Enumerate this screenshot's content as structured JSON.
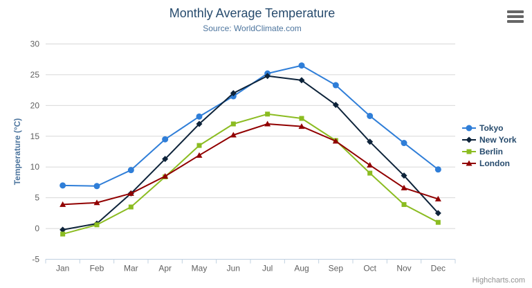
{
  "chart": {
    "credits": "Highcharts.com",
    "context_menu_icon": "hamburger-menu-icon"
  },
  "chart_data": {
    "type": "line",
    "title": "Monthly Average Temperature",
    "subtitle": "Source: WorldClimate.com",
    "xlabel": "",
    "ylabel": "Temperature (°C)",
    "ylim": [
      -5,
      30
    ],
    "yticks": [
      -5,
      0,
      5,
      10,
      15,
      20,
      25,
      30
    ],
    "grid": "horizontal",
    "legend_position": "right",
    "categories": [
      "Jan",
      "Feb",
      "Mar",
      "Apr",
      "May",
      "Jun",
      "Jul",
      "Aug",
      "Sep",
      "Oct",
      "Nov",
      "Dec"
    ],
    "series": [
      {
        "name": "Tokyo",
        "color": "#2f7ed8",
        "marker": "circle",
        "values": [
          7.0,
          6.9,
          9.5,
          14.5,
          18.2,
          21.5,
          25.2,
          26.5,
          23.3,
          18.3,
          13.9,
          9.6
        ]
      },
      {
        "name": "New York",
        "color": "#0d233a",
        "marker": "diamond",
        "values": [
          -0.2,
          0.8,
          5.7,
          11.3,
          17.0,
          22.0,
          24.8,
          24.1,
          20.1,
          14.1,
          8.6,
          2.5
        ]
      },
      {
        "name": "Berlin",
        "color": "#8bbc21",
        "marker": "square",
        "values": [
          -0.9,
          0.6,
          3.5,
          8.4,
          13.5,
          17.0,
          18.6,
          17.9,
          14.3,
          9.0,
          3.9,
          1.0
        ]
      },
      {
        "name": "London",
        "color": "#910000",
        "marker": "triangle",
        "values": [
          3.9,
          4.2,
          5.7,
          8.5,
          11.9,
          15.2,
          17.0,
          16.6,
          14.2,
          10.3,
          6.6,
          4.8
        ]
      }
    ],
    "colors": {
      "grid_line": "#d8d8d8",
      "axis_line": "#c0d0e0",
      "tick_label": "#606060",
      "title_text": "#274b6d",
      "subtitle_text": "#4d759e"
    }
  }
}
